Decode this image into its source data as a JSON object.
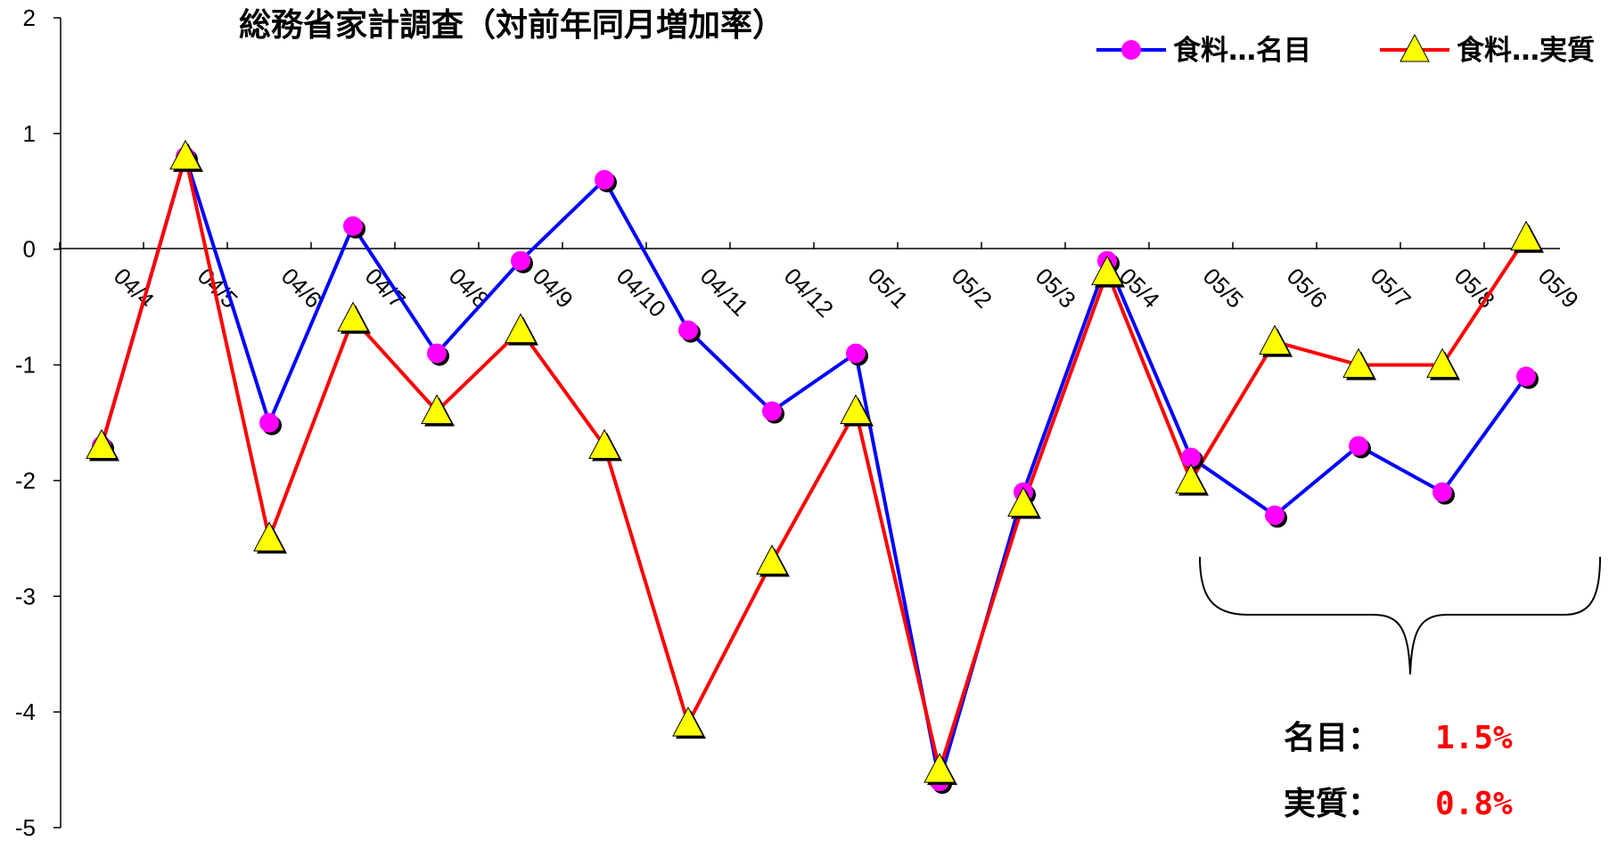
{
  "chart_data": {
    "type": "line",
    "title": "総務省家計調査（対前年同月増加率）",
    "xlabel": "",
    "ylabel": "",
    "ylim": [
      -5,
      2
    ],
    "yticks": [
      2,
      1,
      0,
      -1,
      -2,
      -3,
      -4,
      -5
    ],
    "categories": [
      "04/4",
      "04/5",
      "04/6",
      "04/7",
      "04/8",
      "04/9",
      "04/10",
      "04/11",
      "04/12",
      "05/1",
      "05/2",
      "05/3",
      "05/4",
      "05/5",
      "05/6",
      "05/7",
      "05/8",
      "05/9"
    ],
    "series": [
      {
        "name": "食料…名目",
        "color": "#0000ff",
        "marker": "circle",
        "marker_color": "#ff00ff",
        "values": [
          -1.7,
          0.8,
          -1.5,
          0.2,
          -0.9,
          -0.1,
          0.6,
          -0.7,
          -1.4,
          -0.9,
          -4.6,
          -2.1,
          -0.1,
          -1.8,
          -2.3,
          -1.7,
          -2.1,
          -1.1
        ]
      },
      {
        "name": "食料…実質",
        "color": "#ff0000",
        "marker": "triangle",
        "marker_color": "#ffff00",
        "values": [
          -1.7,
          0.8,
          -2.5,
          -0.6,
          -1.4,
          -0.7,
          -1.7,
          -4.1,
          -2.7,
          -1.4,
          -4.5,
          -2.2,
          -0.2,
          -2.0,
          -0.8,
          -1.0,
          -1.0,
          0.1
        ]
      }
    ],
    "legend_position": "top-right",
    "grid": false,
    "annotation": {
      "type": "brace",
      "spans_categories": [
        "05/5",
        "05/9"
      ],
      "items": [
        {
          "label": "名目：",
          "value": "1.5%"
        },
        {
          "label": "実質：",
          "value": "0.8%"
        }
      ]
    }
  }
}
